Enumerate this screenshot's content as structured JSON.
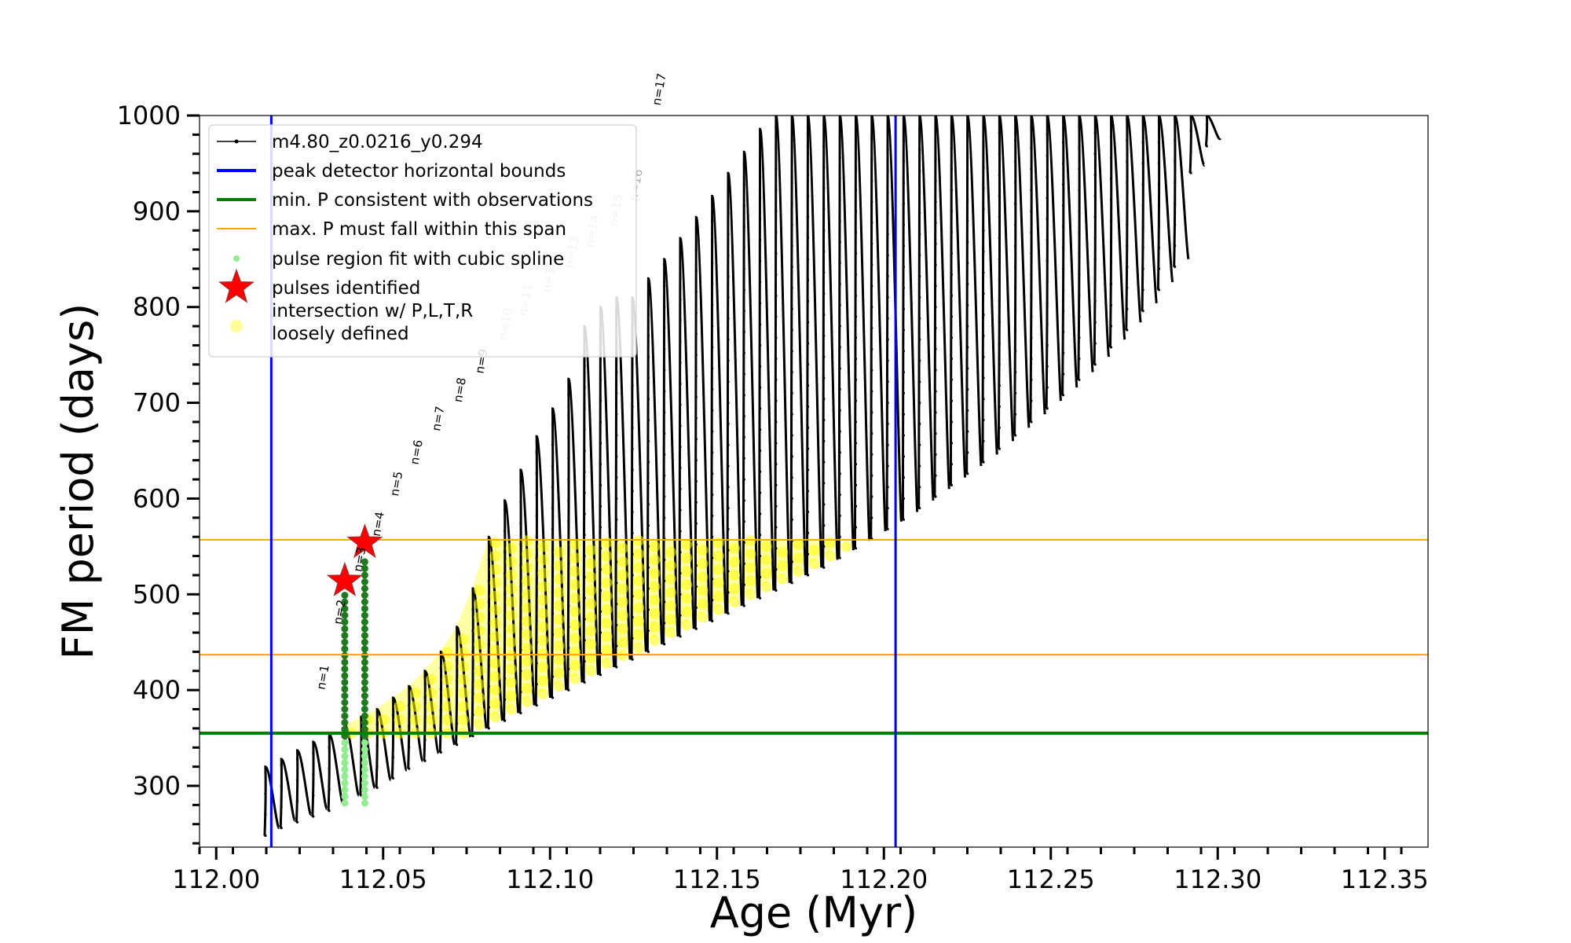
{
  "chart_data": {
    "type": "line",
    "title": "",
    "xlabel": "Age (Myr)",
    "ylabel": "FM period (days)",
    "xlim": [
      111.995,
      112.363
    ],
    "ylim": [
      236,
      1000
    ],
    "x_ticks": [
      "112.00",
      "112.05",
      "112.10",
      "112.15",
      "112.20",
      "112.25",
      "112.30",
      "112.35"
    ],
    "x_tick_values": [
      112.0,
      112.05,
      112.1,
      112.15,
      112.2,
      112.25,
      112.3,
      112.35
    ],
    "y_ticks": [
      "300",
      "400",
      "500",
      "600",
      "700",
      "800",
      "900",
      "1000"
    ],
    "y_tick_values": [
      300,
      400,
      500,
      600,
      700,
      800,
      900,
      1000
    ],
    "grid": false,
    "legend_position": "top-left",
    "colors": {
      "track": "#000000",
      "peak_bounds": "#0000ff",
      "min_period": "#008000",
      "max_period_span": "#ffa500",
      "spline_fit": "#90ee90",
      "spline_fit_dark": "#1f7a1f",
      "pulses": "#ff0000",
      "intersection": "#ffff00",
      "labels_dark": "#000000",
      "labels_light": "#b0b0b0"
    },
    "legend": [
      {
        "label": "m4.80_z0.0216_y0.294",
        "marker": "line-dot",
        "color": "#000000"
      },
      {
        "label": "peak detector horizontal bounds",
        "marker": "line",
        "color": "#0000ff"
      },
      {
        "label": "min. P consistent with observations",
        "marker": "line",
        "color": "#008000"
      },
      {
        "label": "max. P must fall within this span",
        "marker": "thin-line",
        "color": "#ffa500"
      },
      {
        "label": "pulse region fit with cubic spline",
        "marker": "dot",
        "color": "#90ee90"
      },
      {
        "label": "pulses identified",
        "marker": "star",
        "color": "#ff0000"
      },
      {
        "label": "intersection w/ P,L,T,R\nloosely defined",
        "marker": "circle",
        "color": "#ffff99"
      }
    ],
    "peak_detector_bounds": [
      112.0165,
      112.2035
    ],
    "min_period": 355,
    "max_period_span": [
      437,
      557
    ],
    "pulses_identified": [
      {
        "age": 112.0385,
        "period": 514
      },
      {
        "age": 112.0445,
        "period": 554
      }
    ],
    "thermal_pulses": {
      "first_age": 112.0145,
      "last_age": 112.2965,
      "count": 60,
      "peak_period": [
        320,
        328,
        337,
        346,
        354,
        363,
        372,
        380,
        392,
        404,
        420,
        440,
        466,
        506,
        560,
        598,
        630,
        665,
        694,
        725,
        780,
        800,
        810,
        810,
        830,
        850,
        872,
        894,
        916,
        940,
        962,
        986,
        1000,
        1000,
        1000,
        1000,
        1000,
        1000,
        1000,
        1000,
        1000,
        1000,
        1000,
        1000,
        1000,
        1000,
        1000,
        1000,
        1000,
        1000,
        1000,
        1000,
        1000,
        1000,
        1000,
        1000,
        1000,
        1000,
        1000,
        1000
      ],
      "min_period": [
        248,
        256,
        262,
        268,
        274,
        282,
        290,
        298,
        308,
        318,
        326,
        335,
        343,
        352,
        360,
        368,
        376,
        384,
        392,
        400,
        408,
        416,
        424,
        432,
        440,
        448,
        456,
        464,
        472,
        480,
        488,
        496,
        504,
        512,
        520,
        528,
        538,
        548,
        558,
        568,
        578,
        590,
        602,
        614,
        626,
        638,
        652,
        666,
        680,
        694,
        708,
        724,
        740,
        758,
        776,
        796,
        818,
        842,
        940,
        968
      ]
    },
    "pulse_labels": [
      {
        "text": "n=1",
        "age": 112.0325,
        "period": 400,
        "shade": "dark"
      },
      {
        "text": "n=2",
        "age": 112.0375,
        "period": 468,
        "shade": "dark"
      },
      {
        "text": "n=3",
        "age": 112.0435,
        "period": 523,
        "shade": "dark"
      },
      {
        "text": "n=4",
        "age": 112.049,
        "period": 560,
        "shade": "dark"
      },
      {
        "text": "n=5",
        "age": 112.0545,
        "period": 602,
        "shade": "dark"
      },
      {
        "text": "n=6",
        "age": 112.0605,
        "period": 635,
        "shade": "dark"
      },
      {
        "text": "n=7",
        "age": 112.067,
        "period": 670,
        "shade": "dark"
      },
      {
        "text": "n=8",
        "age": 112.0735,
        "period": 700,
        "shade": "dark"
      },
      {
        "text": "n=9",
        "age": 112.08,
        "period": 730,
        "shade": "dark"
      },
      {
        "text": "n=10",
        "age": 112.087,
        "period": 765,
        "shade": "light"
      },
      {
        "text": "n=11",
        "age": 112.093,
        "period": 790,
        "shade": "light"
      },
      {
        "text": "n=12",
        "age": 112.1,
        "period": 815,
        "shade": "light"
      },
      {
        "text": "n=13",
        "age": 112.107,
        "period": 840,
        "shade": "light"
      },
      {
        "text": "n=14",
        "age": 112.113,
        "period": 862,
        "shade": "light"
      },
      {
        "text": "n=15",
        "age": 112.12,
        "period": 884,
        "shade": "light"
      },
      {
        "text": "n=16",
        "age": 112.126,
        "period": 910,
        "shade": "light"
      },
      {
        "text": "n=17",
        "age": 112.133,
        "period": 1010,
        "shade": "dark"
      }
    ]
  }
}
